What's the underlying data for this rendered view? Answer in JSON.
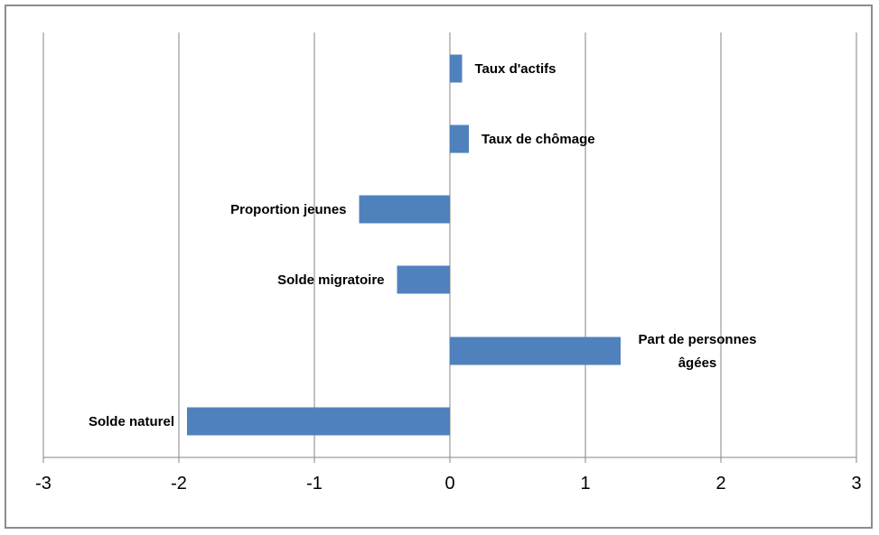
{
  "chart_data": {
    "type": "bar",
    "orientation": "horizontal",
    "title": "",
    "xlabel": "",
    "ylabel": "",
    "xlim": [
      -3,
      3
    ],
    "x_ticks": [
      -3,
      -2,
      -1,
      0,
      1,
      2,
      3
    ],
    "grid": "vertical major gridlines",
    "legend": "none",
    "bar_color": "#4F81BD",
    "categories": [
      "Taux d'actifs",
      "Taux de chômage",
      "Proportion jeunes",
      "Solde migratoire",
      "Part de personnes âgées",
      "Solde naturel"
    ],
    "category_label_lines": [
      [
        "Taux d'actifs"
      ],
      [
        "Taux de chômage"
      ],
      [
        "Proportion jeunes"
      ],
      [
        "Solde migratoire"
      ],
      [
        "Part de personnes",
        "âgées"
      ],
      [
        "Solde naturel"
      ]
    ],
    "values": [
      0.09,
      0.14,
      -0.67,
      -0.39,
      1.26,
      -1.94
    ]
  }
}
